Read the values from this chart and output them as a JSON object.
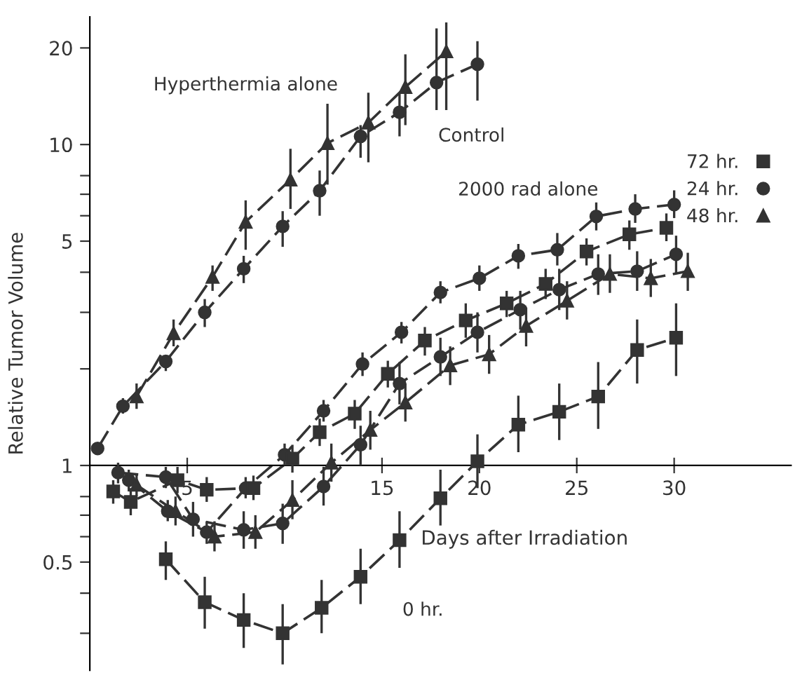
{
  "chart_data": {
    "type": "line",
    "xlabel": "Days after Irradiation",
    "ylabel": "Relative Tumor Volume",
    "log": "y",
    "xlim": [
      0,
      36
    ],
    "xticks": [
      5,
      15,
      20,
      25,
      30
    ],
    "ylim": [
      0.23,
      25
    ],
    "yticks": [
      {
        "value": 0.3,
        "label": null
      },
      {
        "value": 0.4,
        "label": null
      },
      0.5,
      {
        "value": 0.6,
        "label": null
      },
      {
        "value": 0.7,
        "label": null
      },
      {
        "value": 0.8,
        "label": null
      },
      1,
      {
        "value": 2,
        "label": null
      },
      {
        "value": 3,
        "label": null
      },
      {
        "value": 4,
        "label": null
      },
      5,
      {
        "value": 6,
        "label": null
      },
      {
        "value": 7,
        "label": null
      },
      {
        "value": 8,
        "label": null
      },
      10,
      20
    ],
    "grid": false,
    "legend": "right",
    "line_style": "dashed",
    "series": [
      {
        "name": "Hyperthermia alone",
        "color": "#333333",
        "marker": "triangle",
        "x": [
          2.4,
          4.3,
          6.3,
          8.0,
          10.3,
          12.2,
          14.3,
          16.2,
          18.3
        ],
        "values": [
          1.64,
          2.58,
          3.87,
          5.74,
          7.77,
          10.1,
          11.7,
          15.1,
          19.5
        ],
        "errors": [
          [
            1.5,
            1.8
          ],
          [
            2.35,
            2.85
          ],
          [
            3.5,
            4.2
          ],
          [
            4.7,
            6.7
          ],
          [
            6.3,
            9.7
          ],
          [
            7.5,
            13.4
          ],
          [
            8.8,
            14.5
          ],
          [
            11.5,
            19.1
          ],
          [
            12.8,
            24
          ]
        ]
      },
      {
        "name": "Control",
        "color": "#333333",
        "marker": "circle",
        "x": [
          0.4,
          1.7,
          3.9,
          5.9,
          7.9,
          9.9,
          11.8,
          13.9,
          15.9,
          17.8,
          19.9
        ],
        "values": [
          1.13,
          1.53,
          2.11,
          3.0,
          4.1,
          5.56,
          7.18,
          10.6,
          12.6,
          15.6,
          17.8
        ],
        "errors": [
          [
            1.08,
            1.18
          ],
          [
            1.45,
            1.62
          ],
          [
            1.97,
            2.2
          ],
          [
            2.7,
            3.3
          ],
          [
            3.7,
            4.5
          ],
          [
            4.8,
            6.2
          ],
          [
            6.0,
            8.3
          ],
          [
            9.1,
            11.5
          ],
          [
            10.6,
            14.5
          ],
          [
            12.8,
            23
          ],
          [
            13.7,
            21
          ]
        ]
      },
      {
        "name": "2000 rad alone",
        "color": "#333333",
        "marker": "circle",
        "x": [
          2,
          4,
          6,
          8,
          10,
          12,
          14,
          16,
          18,
          20,
          22,
          24,
          26,
          28,
          30
        ],
        "values": [
          0.9,
          0.72,
          0.62,
          0.85,
          1.08,
          1.48,
          2.07,
          2.6,
          3.46,
          3.83,
          4.5,
          4.7,
          5.97,
          6.3,
          6.5
        ],
        "errors": [
          [
            0.83,
            0.97
          ],
          [
            0.67,
            0.78
          ],
          [
            0.57,
            0.67
          ],
          [
            0.79,
            0.92
          ],
          [
            1.0,
            1.17
          ],
          [
            1.37,
            1.6
          ],
          [
            1.9,
            2.25
          ],
          [
            2.4,
            2.8
          ],
          [
            3.2,
            3.75
          ],
          [
            3.5,
            4.2
          ],
          [
            4.1,
            4.9
          ],
          [
            4.2,
            5.3
          ],
          [
            5.4,
            6.6
          ],
          [
            5.7,
            7.0
          ],
          [
            5.9,
            7.2
          ]
        ]
      },
      {
        "name": "72 hr.",
        "color": "#333333",
        "marker": "square",
        "x": [
          1.2,
          2.1,
          4.5,
          6.0,
          8.4,
          10.4,
          11.8,
          13.6,
          15.3,
          17.2,
          19.3,
          21.4,
          23.4,
          25.5,
          27.7,
          29.6
        ],
        "values": [
          0.83,
          0.77,
          0.9,
          0.84,
          0.85,
          1.05,
          1.27,
          1.45,
          1.93,
          2.45,
          2.83,
          3.2,
          3.68,
          4.64,
          5.25,
          5.5
        ],
        "errors": [
          [
            0.76,
            0.9
          ],
          [
            0.7,
            0.85
          ],
          [
            0.82,
            0.99
          ],
          [
            0.77,
            0.92
          ],
          [
            0.78,
            0.93
          ],
          [
            0.95,
            1.16
          ],
          [
            1.15,
            1.4
          ],
          [
            1.3,
            1.6
          ],
          [
            1.75,
            2.12
          ],
          [
            2.2,
            2.7
          ],
          [
            2.5,
            3.2
          ],
          [
            2.9,
            3.5
          ],
          [
            3.3,
            4.1
          ],
          [
            4.2,
            5.1
          ],
          [
            4.7,
            5.8
          ],
          [
            5.0,
            6.1
          ]
        ]
      },
      {
        "name": "24 hr.",
        "color": "#333333",
        "marker": "circle",
        "x": [
          1.45,
          3.9,
          5.3,
          7.9,
          9.9,
          12.0,
          13.9,
          15.9,
          18.0,
          19.9,
          22.1,
          24.1,
          26.1,
          28.1,
          30.1
        ],
        "values": [
          0.95,
          0.92,
          0.68,
          0.63,
          0.66,
          0.86,
          1.16,
          1.8,
          2.18,
          2.6,
          3.06,
          3.53,
          3.95,
          4.03,
          4.55
        ],
        "errors": [
          [
            0.88,
            1.02
          ],
          [
            0.85,
            0.99
          ],
          [
            0.6,
            0.77
          ],
          [
            0.55,
            0.72
          ],
          [
            0.57,
            0.76
          ],
          [
            0.75,
            0.99
          ],
          [
            1.0,
            1.33
          ],
          [
            1.55,
            2.1
          ],
          [
            1.9,
            2.5
          ],
          [
            2.25,
            3.0
          ],
          [
            2.65,
            3.5
          ],
          [
            3.05,
            4.1
          ],
          [
            3.4,
            4.55
          ],
          [
            3.5,
            4.65
          ],
          [
            3.95,
            5.2
          ]
        ]
      },
      {
        "name": "48 hr.",
        "color": "#333333",
        "marker": "triangle",
        "x": [
          2.4,
          4.4,
          6.4,
          8.5,
          10.4,
          12.4,
          14.4,
          16.2,
          18.5,
          20.5,
          22.4,
          24.5,
          26.7,
          28.8,
          30.7
        ],
        "values": [
          0.87,
          0.72,
          0.6,
          0.62,
          0.78,
          1.02,
          1.29,
          1.57,
          2.05,
          2.22,
          2.72,
          3.26,
          3.95,
          3.83,
          4.03
        ],
        "errors": [
          [
            0.8,
            0.94
          ],
          [
            0.65,
            0.8
          ],
          [
            0.54,
            0.67
          ],
          [
            0.55,
            0.7
          ],
          [
            0.68,
            0.9
          ],
          [
            0.89,
            1.17
          ],
          [
            1.12,
            1.48
          ],
          [
            1.37,
            1.8
          ],
          [
            1.78,
            2.35
          ],
          [
            1.93,
            2.55
          ],
          [
            2.35,
            3.1
          ],
          [
            2.85,
            3.75
          ],
          [
            3.45,
            4.55
          ],
          [
            3.35,
            4.4
          ],
          [
            3.5,
            4.6
          ]
        ]
      },
      {
        "name": "0 hr.",
        "color": "#333333",
        "marker": "square",
        "x": [
          3.9,
          5.9,
          7.9,
          9.9,
          11.9,
          13.9,
          15.9,
          18.0,
          19.9,
          22.0,
          24.1,
          26.1,
          28.1,
          30.1
        ],
        "values": [
          0.51,
          0.375,
          0.33,
          0.3,
          0.36,
          0.45,
          0.585,
          0.79,
          1.03,
          1.34,
          1.47,
          1.64,
          2.29,
          2.5
        ],
        "errors": [
          [
            0.44,
            0.58
          ],
          [
            0.31,
            0.45
          ],
          [
            0.27,
            0.4
          ],
          [
            0.24,
            0.37
          ],
          [
            0.3,
            0.44
          ],
          [
            0.37,
            0.55
          ],
          [
            0.48,
            0.72
          ],
          [
            0.65,
            0.97
          ],
          [
            0.85,
            1.25
          ],
          [
            1.1,
            1.65
          ],
          [
            1.2,
            1.8
          ],
          [
            1.3,
            2.1
          ],
          [
            1.8,
            2.85
          ],
          [
            1.9,
            3.2
          ]
        ]
      }
    ]
  }
}
